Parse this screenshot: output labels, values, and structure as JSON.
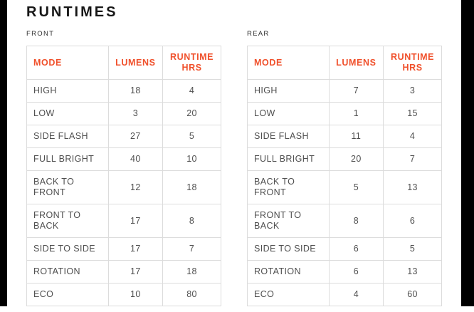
{
  "page_title": "RUNTIMES",
  "colors": {
    "accent": "#F0502B",
    "body_text": "#4F4F4F",
    "border": "#DCDCDC",
    "frame": "#000000"
  },
  "tables": [
    {
      "label": "FRONT",
      "columns": [
        "MODE",
        "LUMENS",
        "RUNTIME HRS"
      ],
      "rows": [
        [
          "HIGH",
          "18",
          "4"
        ],
        [
          "LOW",
          "3",
          "20"
        ],
        [
          "SIDE FLASH",
          "27",
          "5"
        ],
        [
          "FULL BRIGHT",
          "40",
          "10"
        ],
        [
          "BACK TO FRONT",
          "12",
          "18"
        ],
        [
          "FRONT TO BACK",
          "17",
          "8"
        ],
        [
          "SIDE TO SIDE",
          "17",
          "7"
        ],
        [
          "ROTATION",
          "17",
          "18"
        ],
        [
          "ECO",
          "10",
          "80"
        ]
      ]
    },
    {
      "label": "REAR",
      "columns": [
        "MODE",
        "LUMENS",
        "RUNTIME HRS"
      ],
      "rows": [
        [
          "HIGH",
          "7",
          "3"
        ],
        [
          "LOW",
          "1",
          "15"
        ],
        [
          "SIDE FLASH",
          "11",
          "4"
        ],
        [
          "FULL BRIGHT",
          "20",
          "7"
        ],
        [
          "BACK TO FRONT",
          "5",
          "13"
        ],
        [
          "FRONT TO BACK",
          "8",
          "6"
        ],
        [
          "SIDE TO SIDE",
          "6",
          "5"
        ],
        [
          "ROTATION",
          "6",
          "13"
        ],
        [
          "ECO",
          "4",
          "60"
        ]
      ]
    }
  ]
}
